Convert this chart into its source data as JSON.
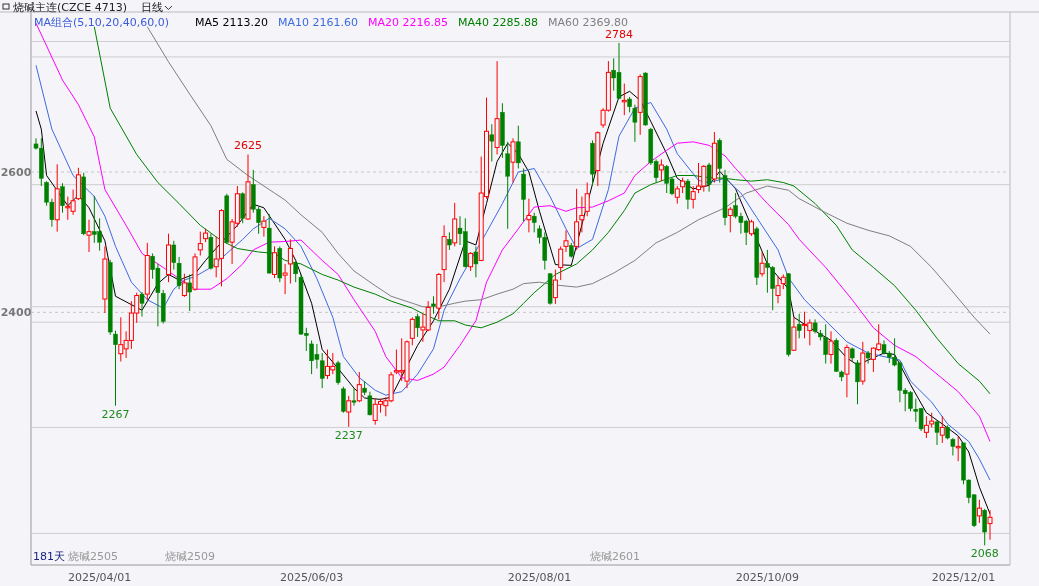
{
  "chart_data": {
    "type": "candlestick",
    "title": "烧碱主连(CZCE 4713)",
    "subtitle": "日线",
    "legend_title": "MA组合(5,10,20,40,60,0)",
    "legend": "top left",
    "grid": "y",
    "ylim": [
      2040,
      2828
    ],
    "yticks": [
      2400,
      2600
    ],
    "categories": [
      null,
      null,
      null,
      null,
      null,
      null,
      null,
      null,
      null,
      null,
      null,
      null,
      "2025/04/01",
      null,
      null,
      null,
      null,
      null,
      null,
      null,
      null,
      null,
      null,
      null,
      null,
      null,
      null,
      null,
      null,
      null,
      null,
      null,
      null,
      null,
      null,
      null,
      null,
      null,
      null,
      null,
      null,
      null,
      null,
      null,
      null,
      null,
      null,
      null,
      null,
      null,
      null,
      null,
      "2025/06/03",
      null,
      null,
      null,
      null,
      null,
      null,
      null,
      null,
      null,
      null,
      null,
      null,
      null,
      null,
      null,
      null,
      null,
      null,
      null,
      null,
      null,
      null,
      null,
      null,
      null,
      null,
      null,
      null,
      null,
      null,
      null,
      null,
      null,
      null,
      null,
      null,
      null,
      null,
      null,
      null,
      null,
      null,
      "2025/08/01",
      null,
      null,
      null,
      null,
      null,
      null,
      null,
      null,
      null,
      null,
      null,
      null,
      null,
      null,
      null,
      null,
      null,
      null,
      null,
      null,
      null,
      null,
      null,
      null,
      null,
      null,
      null,
      null,
      null,
      null,
      null,
      null,
      null,
      null,
      null,
      null,
      null,
      null,
      null,
      null,
      null,
      null,
      "2025/10/09",
      null,
      null,
      null,
      null,
      null,
      null,
      null,
      null,
      null,
      null,
      null,
      null,
      null,
      null,
      null,
      null,
      null,
      null,
      null,
      null,
      null,
      null,
      null,
      null,
      null,
      null,
      null,
      null,
      null,
      null,
      null,
      null,
      null,
      null,
      null,
      null,
      "2025/12/01",
      null,
      null,
      null,
      null,
      null
    ],
    "ohlc": [
      [
        2640,
        2648,
        2632,
        2634
      ],
      [
        2634,
        2648,
        2580,
        2591
      ],
      [
        2585,
        2587,
        2552,
        2557
      ],
      [
        2557,
        2562,
        2522,
        2532
      ],
      [
        2532,
        2611,
        2515,
        2576
      ],
      [
        2579,
        2584,
        2542,
        2552
      ],
      [
        2549,
        2565,
        2532,
        2551
      ],
      [
        2544,
        2575,
        2539,
        2559
      ],
      [
        2562,
        2606,
        2560,
        2596
      ],
      [
        2593,
        2599,
        2510,
        2512
      ],
      [
        2510,
        2532,
        2486,
        2515
      ],
      [
        2515,
        2566,
        2499,
        2511
      ],
      [
        2515,
        2534,
        2488,
        2500
      ],
      [
        2419,
        2494,
        2399,
        2476
      ],
      [
        2471,
        2475,
        2368,
        2372
      ],
      [
        2369,
        2374,
        2267,
        2354
      ],
      [
        2341,
        2393,
        2330,
        2354
      ],
      [
        2348,
        2373,
        2335,
        2360
      ],
      [
        2360,
        2416,
        2348,
        2399
      ],
      [
        2399,
        2428,
        2385,
        2424
      ],
      [
        2426,
        2429,
        2394,
        2413
      ],
      [
        2426,
        2499,
        2418,
        2481
      ],
      [
        2480,
        2484,
        2448,
        2461
      ],
      [
        2463,
        2469,
        2380,
        2428
      ],
      [
        2427,
        2432,
        2384,
        2387
      ],
      [
        2454,
        2512,
        2443,
        2496
      ],
      [
        2496,
        2502,
        2461,
        2471
      ],
      [
        2470,
        2479,
        2433,
        2438
      ],
      [
        2424,
        2455,
        2422,
        2442
      ],
      [
        2442,
        2454,
        2402,
        2429
      ],
      [
        2433,
        2484,
        2431,
        2479
      ],
      [
        2489,
        2515,
        2481,
        2498
      ],
      [
        2505,
        2519,
        2500,
        2513
      ],
      [
        2507,
        2512,
        2461,
        2463
      ],
      [
        2465,
        2508,
        2450,
        2476
      ],
      [
        2477,
        2547,
        2437,
        2545
      ],
      [
        2566,
        2569,
        2498,
        2500
      ],
      [
        2500,
        2533,
        2469,
        2529
      ],
      [
        2527,
        2580,
        2522,
        2569
      ],
      [
        2569,
        2571,
        2527,
        2534
      ],
      [
        2533,
        2625,
        2532,
        2586
      ],
      [
        2582,
        2603,
        2542,
        2547
      ],
      [
        2547,
        2550,
        2512,
        2528
      ],
      [
        2521,
        2537,
        2508,
        2530
      ],
      [
        2520,
        2540,
        2455,
        2456
      ],
      [
        2454,
        2494,
        2449,
        2485
      ],
      [
        2491,
        2494,
        2443,
        2449
      ],
      [
        2453,
        2469,
        2426,
        2456
      ],
      [
        2469,
        2504,
        2441,
        2491
      ],
      [
        2470,
        2474,
        2443,
        2455
      ],
      [
        2450,
        2454,
        2368,
        2369
      ],
      [
        2370,
        2378,
        2345,
        2367
      ],
      [
        2355,
        2360,
        2312,
        2331
      ],
      [
        2340,
        2355,
        2320,
        2333
      ],
      [
        2331,
        2342,
        2292,
        2306
      ],
      [
        2310,
        2347,
        2305,
        2323
      ],
      [
        2318,
        2342,
        2312,
        2323
      ],
      [
        2328,
        2331,
        2297,
        2300
      ],
      [
        2291,
        2294,
        2257,
        2259
      ],
      [
        2258,
        2281,
        2237,
        2274
      ],
      [
        2274,
        2292,
        2267,
        2272
      ],
      [
        2274,
        2315,
        2272,
        2297
      ],
      [
        2292,
        2302,
        2282,
        2286
      ],
      [
        2281,
        2287,
        2253,
        2254
      ],
      [
        2246,
        2277,
        2240,
        2269
      ],
      [
        2269,
        2277,
        2257,
        2273
      ],
      [
        2267,
        2279,
        2252,
        2274
      ],
      [
        2274,
        2315,
        2272,
        2311
      ],
      [
        2315,
        2347,
        2312,
        2317
      ],
      [
        2315,
        2363,
        2302,
        2317
      ],
      [
        2302,
        2360,
        2292,
        2358
      ],
      [
        2363,
        2393,
        2353,
        2390
      ],
      [
        2394,
        2398,
        2365,
        2378
      ],
      [
        2375,
        2398,
        2358,
        2379
      ],
      [
        2375,
        2416,
        2373,
        2407
      ],
      [
        2412,
        2423,
        2398,
        2409
      ],
      [
        2406,
        2456,
        2390,
        2454
      ],
      [
        2461,
        2524,
        2443,
        2508
      ],
      [
        2504,
        2514,
        2489,
        2496
      ],
      [
        2499,
        2556,
        2494,
        2533
      ],
      [
        2520,
        2537,
        2496,
        2512
      ],
      [
        2515,
        2534,
        2464,
        2465
      ],
      [
        2465,
        2486,
        2459,
        2484
      ],
      [
        2486,
        2494,
        2450,
        2469
      ],
      [
        2474,
        2622,
        2473,
        2570
      ],
      [
        2565,
        2706,
        2562,
        2658
      ],
      [
        2653,
        2668,
        2615,
        2644
      ],
      [
        2635,
        2758,
        2625,
        2676
      ],
      [
        2685,
        2698,
        2620,
        2638
      ],
      [
        2626,
        2643,
        2519,
        2594
      ],
      [
        2614,
        2648,
        2585,
        2643
      ],
      [
        2643,
        2666,
        2605,
        2613
      ],
      [
        2597,
        2605,
        2529,
        2561
      ],
      [
        2532,
        2562,
        2514,
        2538
      ],
      [
        2537,
        2542,
        2514,
        2528
      ],
      [
        2519,
        2524,
        2498,
        2507
      ],
      [
        2507,
        2514,
        2461,
        2474
      ],
      [
        2455,
        2456,
        2411,
        2413
      ],
      [
        2421,
        2461,
        2412,
        2446
      ],
      [
        2464,
        2494,
        2446,
        2490
      ],
      [
        2494,
        2517,
        2486,
        2502
      ],
      [
        2495,
        2499,
        2478,
        2480
      ],
      [
        2494,
        2576,
        2489,
        2529
      ],
      [
        2532,
        2565,
        2514,
        2538
      ],
      [
        2544,
        2585,
        2537,
        2569
      ],
      [
        2641,
        2645,
        2581,
        2597
      ],
      [
        2602,
        2658,
        2580,
        2656
      ],
      [
        2667,
        2691,
        2663,
        2688
      ],
      [
        2688,
        2758,
        2686,
        2742
      ],
      [
        2745,
        2762,
        2716,
        2734
      ],
      [
        2742,
        2784,
        2704,
        2705
      ],
      [
        2700,
        2726,
        2681,
        2702
      ],
      [
        2704,
        2707,
        2685,
        2693
      ],
      [
        2691,
        2696,
        2643,
        2671
      ],
      [
        2685,
        2739,
        2653,
        2736
      ],
      [
        2741,
        2742,
        2666,
        2667
      ],
      [
        2661,
        2663,
        2610,
        2613
      ],
      [
        2615,
        2618,
        2585,
        2592
      ],
      [
        2603,
        2618,
        2587,
        2610
      ],
      [
        2608,
        2610,
        2570,
        2584
      ],
      [
        2590,
        2592,
        2567,
        2569
      ],
      [
        2564,
        2580,
        2555,
        2576
      ],
      [
        2579,
        2592,
        2570,
        2587
      ],
      [
        2587,
        2590,
        2547,
        2561
      ],
      [
        2561,
        2580,
        2548,
        2572
      ],
      [
        2575,
        2613,
        2570,
        2580
      ],
      [
        2580,
        2610,
        2572,
        2608
      ],
      [
        2610,
        2613,
        2572,
        2582
      ],
      [
        2590,
        2657,
        2585,
        2641
      ],
      [
        2645,
        2648,
        2585,
        2605
      ],
      [
        2595,
        2603,
        2524,
        2535
      ],
      [
        2538,
        2550,
        2514,
        2547
      ],
      [
        2552,
        2570,
        2534,
        2537
      ],
      [
        2537,
        2542,
        2512,
        2528
      ],
      [
        2530,
        2532,
        2496,
        2514
      ],
      [
        2512,
        2532,
        2509,
        2529
      ],
      [
        2519,
        2522,
        2439,
        2450
      ],
      [
        2455,
        2486,
        2451,
        2470
      ],
      [
        2470,
        2489,
        2428,
        2464
      ],
      [
        2464,
        2466,
        2403,
        2434
      ],
      [
        2424,
        2451,
        2413,
        2438
      ],
      [
        2441,
        2454,
        2433,
        2450
      ],
      [
        2455,
        2456,
        2337,
        2340
      ],
      [
        2346,
        2393,
        2345,
        2379
      ],
      [
        2383,
        2398,
        2363,
        2374
      ],
      [
        2382,
        2401,
        2363,
        2383
      ],
      [
        2374,
        2390,
        2353,
        2385
      ],
      [
        2385,
        2390,
        2370,
        2373
      ],
      [
        2370,
        2375,
        2360,
        2365
      ],
      [
        2364,
        2383,
        2327,
        2340
      ],
      [
        2340,
        2373,
        2327,
        2359
      ],
      [
        2360,
        2363,
        2315,
        2316
      ],
      [
        2315,
        2317,
        2302,
        2308
      ],
      [
        2312,
        2354,
        2279,
        2350
      ],
      [
        2348,
        2350,
        2330,
        2335
      ],
      [
        2328,
        2332,
        2269,
        2301
      ],
      [
        2302,
        2358,
        2297,
        2342
      ],
      [
        2342,
        2345,
        2327,
        2335
      ],
      [
        2333,
        2350,
        2315,
        2349
      ],
      [
        2347,
        2383,
        2345,
        2355
      ],
      [
        2354,
        2360,
        2340,
        2342
      ],
      [
        2342,
        2345,
        2328,
        2336
      ],
      [
        2336,
        2363,
        2323,
        2325
      ],
      [
        2328,
        2330,
        2272,
        2289
      ],
      [
        2289,
        2292,
        2259,
        2284
      ],
      [
        2286,
        2288,
        2259,
        2263
      ],
      [
        2262,
        2277,
        2244,
        2259
      ],
      [
        2263,
        2264,
        2231,
        2234
      ],
      [
        2229,
        2252,
        2221,
        2239
      ],
      [
        2241,
        2257,
        2236,
        2245
      ],
      [
        2244,
        2246,
        2211,
        2229
      ],
      [
        2225,
        2252,
        2214,
        2236
      ],
      [
        2236,
        2239,
        2219,
        2221
      ],
      [
        2219,
        2221,
        2196,
        2209
      ],
      [
        2207,
        2223,
        2188,
        2209
      ],
      [
        2214,
        2214,
        2155,
        2161
      ],
      [
        2161,
        2162,
        2128,
        2136
      ],
      [
        2140,
        2141,
        2094,
        2096
      ],
      [
        2110,
        2133,
        2100,
        2121
      ],
      [
        2118,
        2120,
        2068,
        2087
      ],
      [
        2099,
        2118,
        2076,
        2108
      ]
    ],
    "series": [
      {
        "type": "line",
        "name": "MA5 2113.20",
        "color": "#000000",
        "values": [
          2687,
          2661,
          2595,
          null,
          null,
          null,
          2552,
          null,
          2567,
          null,
          2549,
          null,
          null,
          2502,
          null,
          2423,
          null,
          null,
          null,
          null,
          2403,
          null,
          null,
          2441,
          null,
          2454,
          null,
          2446,
          null,
          null,
          2455,
          null,
          2474,
          null,
          null,
          2500,
          null,
          null,
          2524,
          null,
          null,
          2554,
          null,
          2549,
          null,
          null,
          null,
          2504,
          null,
          2474,
          null,
          null,
          2413,
          null,
          2347,
          null,
          null,
          2320,
          null,
          null,
          2292,
          null,
          2278,
          null,
          null,
          2276,
          null,
          2279,
          null,
          null,
          null,
          null,
          2353,
          null,
          null,
          2388,
          null,
          null,
          2433,
          null,
          null,
          2502,
          null,
          2496,
          null,
          2555,
          null,
          2615,
          null,
          2641,
          null,
          2626,
          null,
          2600,
          null,
          2544,
          null,
          null,
          2468,
          null,
          null,
          2467,
          null,
          null,
          null,
          null,
          null,
          2641,
          null,
          null,
          2707,
          null,
          2715,
          null,
          2702,
          null,
          2672,
          null,
          null,
          2626,
          null,
          2591,
          null,
          null,
          2576,
          null,
          null,
          2581,
          null,
          2601,
          null,
          null,
          2576,
          null,
          null,
          null,
          null,
          null,
          2469,
          null,
          null,
          null,
          2433,
          2393,
          null,
          null,
          2378,
          null,
          null,
          null,
          2360,
          null,
          null,
          2335,
          null,
          2325,
          null,
          2332,
          null,
          null,
          2342,
          null,
          2340,
          null,
          null,
          2297,
          null,
          null,
          2257,
          null,
          null,
          2241,
          null,
          null,
          2224,
          null,
          2201,
          null,
          2151,
          null,
          2113
        ]
      },
      {
        "type": "line",
        "name": "MA10 2161.60",
        "color": "#3d6be0",
        "values": [
          2752,
          null,
          null,
          2661,
          null,
          null,
          null,
          2595,
          null,
          null,
          null,
          2565,
          null,
          2537,
          null,
          2494,
          null,
          null,
          2443,
          null,
          null,
          2418,
          null,
          null,
          2406,
          null,
          2433,
          null,
          2446,
          null,
          2451,
          null,
          null,
          2464,
          null,
          null,
          2484,
          null,
          null,
          2504,
          null,
          2519,
          null,
          null,
          2534,
          null,
          null,
          2519,
          null,
          null,
          2494,
          null,
          null,
          2448,
          null,
          null,
          2393,
          null,
          2337,
          null,
          null,
          2307,
          null,
          null,
          2289,
          null,
          2282,
          null,
          null,
          2287,
          null,
          null,
          2312,
          null,
          null,
          2348,
          null,
          2403,
          null,
          null,
          2448,
          null,
          null,
          null,
          null,
          2514,
          null,
          null,
          2555,
          null,
          null,
          2600,
          null,
          null,
          2605,
          null,
          null,
          2565,
          null,
          null,
          2519,
          null,
          2491,
          null,
          null,
          2504,
          null,
          null,
          2575,
          null,
          2651,
          null,
          null,
          2691,
          null,
          null,
          2699,
          null,
          null,
          2661,
          null,
          2626,
          null,
          null,
          null,
          2588,
          null,
          2585,
          null,
          null,
          2591,
          null,
          null,
          2570,
          null,
          null,
          2535,
          null,
          null,
          null,
          2489,
          null,
          2449,
          null,
          null,
          2418,
          null,
          null,
          null,
          2388,
          null,
          null,
          null,
          2358,
          null,
          null,
          null,
          2342,
          null,
          null,
          2337,
          null,
          null,
          2332,
          null,
          2302,
          null,
          null,
          null,
          2272,
          null,
          null,
          2241,
          null,
          null,
          null,
          2216,
          null,
          2191,
          null,
          2161
        ]
      },
      {
        "type": "line",
        "name": "MA20 2216.85",
        "color": "#ff00ff",
        "values": [
          2812,
          null,
          null,
          null,
          null,
          2731,
          null,
          null,
          2696,
          null,
          null,
          2650,
          null,
          2575,
          null,
          null,
          null,
          2524,
          null,
          null,
          2484,
          null,
          null,
          null,
          2464,
          null,
          null,
          2448,
          null,
          null,
          2433,
          null,
          null,
          2433,
          null,
          null,
          2448,
          null,
          null,
          2469,
          null,
          2489,
          null,
          null,
          2500,
          null,
          null,
          2501,
          null,
          null,
          2503,
          null,
          null,
          null,
          2474,
          null,
          null,
          2454,
          null,
          null,
          2418,
          null,
          null,
          null,
          2373,
          null,
          2337,
          null,
          null,
          2307,
          null,
          null,
          2303,
          null,
          null,
          2312,
          null,
          2322,
          null,
          null,
          2353,
          null,
          null,
          2388,
          null,
          2443,
          null,
          null,
          2489,
          null,
          null,
          2519,
          null,
          null,
          2550,
          null,
          null,
          2552,
          null,
          null,
          2544,
          null,
          2549,
          null,
          null,
          2550,
          null,
          null,
          2559,
          null,
          null,
          2570,
          null,
          2595,
          null,
          null,
          2615,
          null,
          null,
          2631,
          null,
          2641,
          null,
          null,
          2643,
          null,
          null,
          2638,
          null,
          null,
          2623,
          null,
          2605,
          null,
          null,
          2580,
          null,
          null,
          2555,
          null,
          null,
          null,
          2525,
          null,
          2504,
          null,
          null,
          null,
          null,
          2464,
          null,
          null,
          null,
          null,
          2418,
          null,
          null,
          null,
          2378,
          null,
          null,
          null,
          2353,
          null,
          null,
          null,
          2337,
          null,
          null,
          null,
          2312,
          null,
          null,
          null,
          2287,
          null,
          null,
          null,
          2252,
          null,
          2216
        ]
      },
      {
        "type": "line",
        "name": "MA40 2285.88",
        "color": "#008000",
        "values": [
          null,
          null,
          null,
          null,
          null,
          null,
          null,
          null,
          null,
          null,
          null,
          2807,
          null,
          null,
          2691,
          null,
          null,
          null,
          null,
          2625,
          null,
          null,
          null,
          2585,
          null,
          null,
          null,
          2555,
          null,
          null,
          null,
          2524,
          null,
          null,
          null,
          2502,
          null,
          null,
          2491,
          null,
          null,
          null,
          2486,
          null,
          null,
          2484,
          null,
          2474,
          null,
          null,
          2469,
          null,
          null,
          null,
          2454,
          null,
          null,
          2446,
          null,
          null,
          2436,
          null,
          null,
          null,
          2426,
          null,
          null,
          2416,
          null,
          null,
          null,
          2406,
          null,
          2398,
          null,
          null,
          2388,
          null,
          null,
          2388,
          null,
          2382,
          null,
          null,
          2378,
          null,
          null,
          2386,
          null,
          null,
          2398,
          null,
          2413,
          null,
          2428,
          null,
          null,
          null,
          2454,
          null,
          null,
          null,
          2469,
          null,
          null,
          2489,
          null,
          null,
          2514,
          null,
          null,
          2545,
          null,
          2570,
          null,
          null,
          2582,
          null,
          null,
          2590,
          null,
          2595,
          null,
          null,
          2595,
          null,
          null,
          2592,
          null,
          null,
          2591,
          null,
          2589,
          null,
          null,
          2587,
          null,
          null,
          2589,
          null,
          null,
          2585,
          null,
          2580,
          null,
          null,
          null,
          2555,
          null,
          null,
          null,
          2524,
          null,
          null,
          2489,
          null,
          null,
          null,
          2464,
          null,
          null,
          null,
          2438,
          null,
          null,
          null,
          2403,
          null,
          null,
          null,
          2363,
          null,
          null,
          null,
          2327,
          null,
          null,
          null,
          2302,
          null,
          2284
        ]
      },
      {
        "type": "line",
        "name": "MA60 2369.80",
        "color": "#808080",
        "values": [
          null,
          null,
          null,
          null,
          null,
          null,
          null,
          null,
          null,
          null,
          null,
          null,
          null,
          null,
          null,
          null,
          null,
          null,
          null,
          null,
          null,
          2807,
          null,
          null,
          null,
          2757,
          null,
          null,
          null,
          2711,
          null,
          null,
          null,
          2666,
          null,
          null,
          2618,
          null,
          null,
          null,
          2595,
          null,
          null,
          null,
          null,
          2570,
          null,
          2560,
          null,
          null,
          2539,
          null,
          null,
          null,
          2514,
          null,
          null,
          2484,
          null,
          null,
          2459,
          null,
          null,
          null,
          2438,
          null,
          null,
          2423,
          null,
          null,
          null,
          2413,
          null,
          2408,
          null,
          null,
          2408,
          null,
          null,
          2413,
          null,
          2416,
          null,
          null,
          2418,
          null,
          null,
          2426,
          null,
          null,
          2433,
          null,
          2441,
          null,
          null,
          2443,
          null,
          null,
          2439,
          null,
          null,
          null,
          2436,
          null,
          null,
          2441,
          null,
          null,
          null,
          2456,
          null,
          null,
          null,
          2474,
          null,
          null,
          null,
          2499,
          null,
          null,
          null,
          2514,
          null,
          null,
          null,
          2532,
          null,
          null,
          null,
          null,
          2549,
          null,
          null,
          null,
          2570,
          null,
          null,
          null,
          2580,
          null,
          null,
          null,
          2574,
          null,
          2562,
          null,
          null,
          null,
          null,
          2542,
          null,
          null,
          null,
          2527,
          null,
          null,
          null,
          2517,
          null,
          null,
          null,
          2509,
          null,
          null,
          null,
          2494,
          null,
          null,
          null,
          2464,
          null,
          null,
          null,
          2429,
          null,
          null,
          null,
          2393,
          null,
          null,
          2369
        ]
      }
    ],
    "ref_lines": [
      {
        "axis": "y",
        "value": 2786,
        "color": "#cfcfcf"
      },
      {
        "axis": "y",
        "value": 2764,
        "color": "#cfcfcf"
      },
      {
        "axis": "y",
        "value": 2582,
        "color": "#cfcfcf"
      },
      {
        "axis": "y",
        "value": 2408,
        "color": "#cfcfcf"
      },
      {
        "axis": "y",
        "value": 2386,
        "color": "#cfcfcf"
      },
      {
        "axis": "y",
        "value": 2236,
        "color": "#cfcfcf"
      },
      {
        "axis": "y",
        "value": 2085,
        "color": "#cfcfcf"
      }
    ],
    "annotations": [
      "181天",
      "烧碱2505",
      "烧碱2509",
      "烧碱2601",
      {
        "text": "2625",
        "y": 2625
      },
      {
        "text": "2784",
        "y": 2784
      },
      {
        "text": "2267",
        "y": 2267
      },
      {
        "text": "2237",
        "y": 2237
      },
      {
        "text": "2068",
        "y": 2068
      }
    ]
  }
}
